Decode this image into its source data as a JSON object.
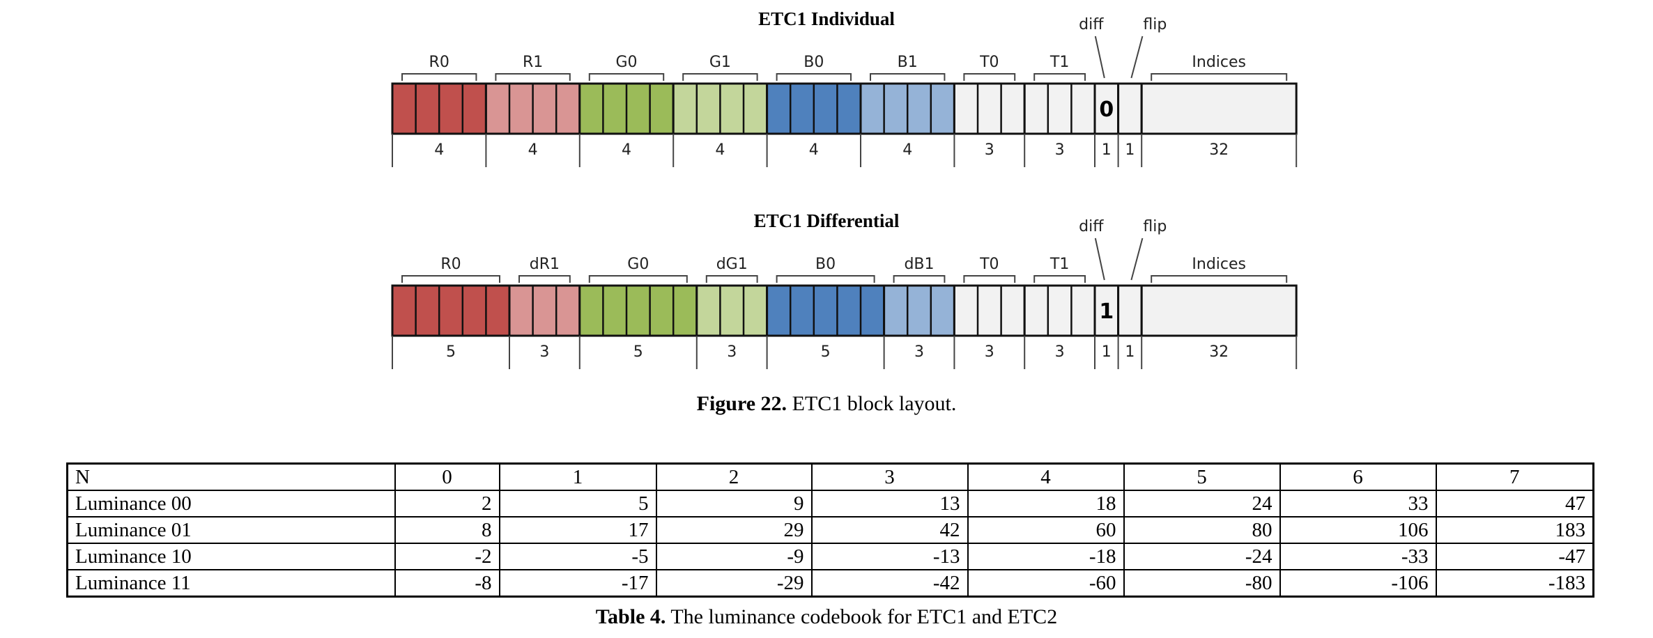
{
  "diagrams": [
    {
      "title": "ETC1 Individual",
      "fields": [
        {
          "label": "R0",
          "bits": 4,
          "width_label": "4",
          "color": "#c0504d",
          "label_above": true
        },
        {
          "label": "R1",
          "bits": 4,
          "width_label": "4",
          "color": "#d99594",
          "label_above": true
        },
        {
          "label": "G0",
          "bits": 4,
          "width_label": "4",
          "color": "#9bbb59",
          "label_above": true
        },
        {
          "label": "G1",
          "bits": 4,
          "width_label": "4",
          "color": "#c3d69b",
          "label_above": true
        },
        {
          "label": "B0",
          "bits": 4,
          "width_label": "4",
          "color": "#4f81bd",
          "label_above": true
        },
        {
          "label": "B1",
          "bits": 4,
          "width_label": "4",
          "color": "#95b3d7",
          "label_above": true
        },
        {
          "label": "T0",
          "bits": 3,
          "width_label": "3",
          "color": "#f2f2f2",
          "label_above": true
        },
        {
          "label": "T1",
          "bits": 3,
          "width_label": "3",
          "color": "#f2f2f2",
          "label_above": true
        },
        {
          "label": "diff",
          "bits": 1,
          "width_label": "1",
          "color": "#f2f2f2",
          "label_above": false,
          "value": "0"
        },
        {
          "label": "flip",
          "bits": 1,
          "width_label": "1",
          "color": "#f2f2f2",
          "label_above": false
        },
        {
          "label": "Indices",
          "bits": 32,
          "width_label": "32",
          "color": "#f2f2f2",
          "label_above": true,
          "solid": true
        }
      ]
    },
    {
      "title": "ETC1 Differential",
      "fields": [
        {
          "label": "R0",
          "bits": 5,
          "width_label": "5",
          "color": "#c0504d",
          "label_above": true
        },
        {
          "label": "dR1",
          "bits": 3,
          "width_label": "3",
          "color": "#d99594",
          "label_above": true
        },
        {
          "label": "G0",
          "bits": 5,
          "width_label": "5",
          "color": "#9bbb59",
          "label_above": true
        },
        {
          "label": "dG1",
          "bits": 3,
          "width_label": "3",
          "color": "#c3d69b",
          "label_above": true
        },
        {
          "label": "B0",
          "bits": 5,
          "width_label": "5",
          "color": "#4f81bd",
          "label_above": true
        },
        {
          "label": "dB1",
          "bits": 3,
          "width_label": "3",
          "color": "#95b3d7",
          "label_above": true
        },
        {
          "label": "T0",
          "bits": 3,
          "width_label": "3",
          "color": "#f2f2f2",
          "label_above": true
        },
        {
          "label": "T1",
          "bits": 3,
          "width_label": "3",
          "color": "#f2f2f2",
          "label_above": true
        },
        {
          "label": "diff",
          "bits": 1,
          "width_label": "1",
          "color": "#f2f2f2",
          "label_above": false,
          "value": "1"
        },
        {
          "label": "flip",
          "bits": 1,
          "width_label": "1",
          "color": "#f2f2f2",
          "label_above": false
        },
        {
          "label": "Indices",
          "bits": 32,
          "width_label": "32",
          "color": "#f2f2f2",
          "label_above": true,
          "solid": true
        }
      ]
    }
  ],
  "figure_caption": {
    "bold": "Figure 22.",
    "text": " ETC1 block layout."
  },
  "table": {
    "header": [
      "N",
      "0",
      "1",
      "2",
      "3",
      "4",
      "5",
      "6",
      "7"
    ],
    "rows": [
      {
        "label": "Luminance 00",
        "values": [
          "2",
          "5",
          "9",
          "13",
          "18",
          "24",
          "33",
          "47"
        ]
      },
      {
        "label": "Luminance 01",
        "values": [
          "8",
          "17",
          "29",
          "42",
          "60",
          "80",
          "106",
          "183"
        ]
      },
      {
        "label": "Luminance 10",
        "values": [
          "-2",
          "-5",
          "-9",
          "-13",
          "-18",
          "-24",
          "-33",
          "-47"
        ]
      },
      {
        "label": "Luminance 11",
        "values": [
          "-8",
          "-17",
          "-29",
          "-42",
          "-60",
          "-80",
          "-106",
          "-183"
        ]
      }
    ]
  },
  "table_caption": {
    "bold": "Table 4.",
    "text": " The luminance codebook for ETC1 and ETC2"
  }
}
